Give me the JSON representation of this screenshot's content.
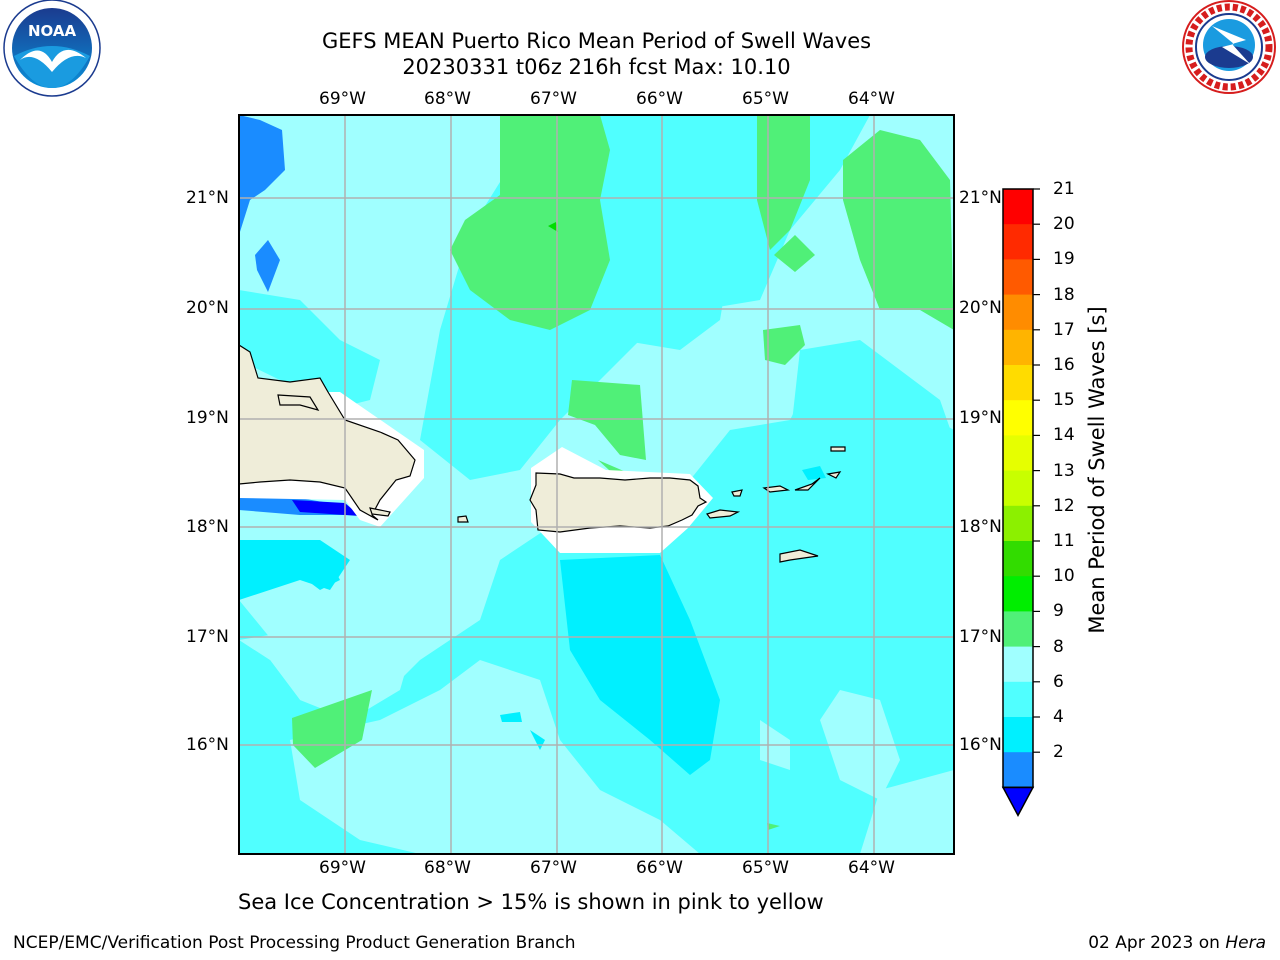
{
  "title": {
    "line1": "GEFS MEAN Puerto Rico Mean Period of Swell Waves",
    "line2": "20230331 t06z 216h fcst   Max: 10.10"
  },
  "logos": {
    "left": "noaa-logo",
    "right": "national-weather-service-logo"
  },
  "map": {
    "lon_labels": [
      "69°W",
      "68°W",
      "67°W",
      "66°W",
      "65°W",
      "64°W"
    ],
    "lat_labels": [
      "21°N",
      "20°N",
      "19°N",
      "18°N",
      "17°N",
      "16°N"
    ],
    "land_color": "#efedd9",
    "grid_color": "#b0b0b0"
  },
  "colorbar": {
    "label": "Mean Period of Swell Waves [s]",
    "ticks": [
      "21",
      "20",
      "19",
      "18",
      "17",
      "16",
      "15",
      "14",
      "13",
      "12",
      "11",
      "10",
      "9",
      "8",
      "6",
      "4",
      "2"
    ],
    "colors": [
      "#ff0000",
      "#ff2a00",
      "#ff5a00",
      "#ff8c00",
      "#ffb400",
      "#ffdc00",
      "#ffff00",
      "#e6ff00",
      "#c8ff00",
      "#8cf000",
      "#32dc00",
      "#00ee00",
      "#50f078",
      "#a0ffff",
      "#50ffff",
      "#00f0ff",
      "#1a8cff"
    ],
    "under_color": "#0000ff"
  },
  "footer": {
    "note": "Sea Ice Concentration > 15% is shown in pink to yellow",
    "left": "NCEP/EMC/Verification Post Processing Product Generation Branch",
    "right_date": "02 Apr 2023 on ",
    "right_host": "Hera"
  }
}
